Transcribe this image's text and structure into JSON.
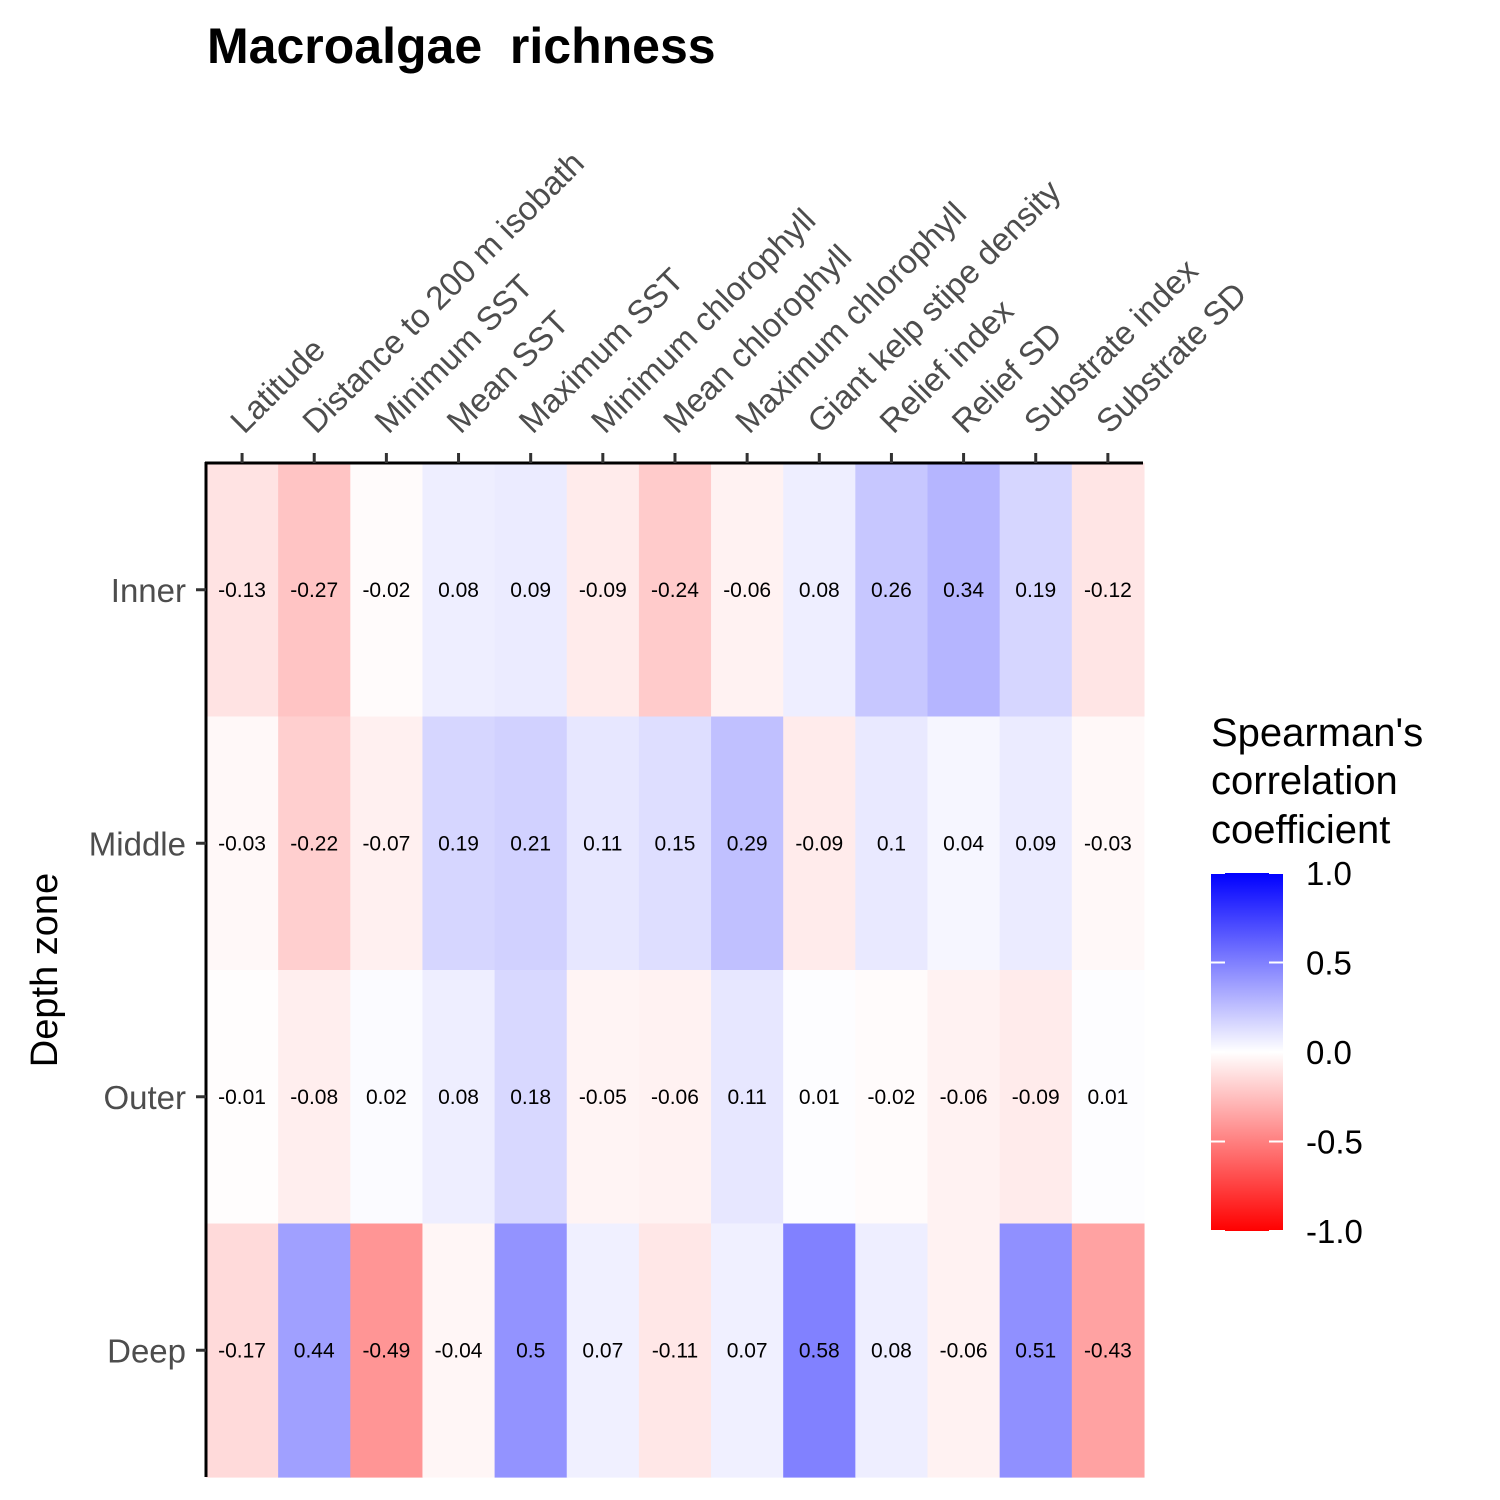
{
  "chart_data": {
    "type": "heatmap",
    "title": "Macroalgae  richness",
    "xlabel": "",
    "ylabel": "Depth zone",
    "x_categories": [
      "Latitude",
      "Distance to 200 m isobath",
      "Minimum SST",
      "Mean SST",
      "Maximum SST",
      "Minimum chlorophyll",
      "Mean chlorophyll",
      "Maximum chlorophyll",
      "Giant kelp stipe density",
      "Relief index",
      "Relief SD",
      "Substrate index",
      "Substrate SD"
    ],
    "y_categories": [
      "Inner",
      "Middle",
      "Outer",
      "Deep"
    ],
    "values": [
      [
        -0.13,
        -0.27,
        -0.02,
        0.08,
        0.09,
        -0.09,
        -0.24,
        -0.06,
        0.08,
        0.26,
        0.34,
        0.19,
        -0.12
      ],
      [
        -0.03,
        -0.22,
        -0.07,
        0.19,
        0.21,
        0.11,
        0.15,
        0.29,
        -0.09,
        0.1,
        0.04,
        0.09,
        -0.03
      ],
      [
        -0.01,
        -0.08,
        0.02,
        0.08,
        0.18,
        -0.05,
        -0.06,
        0.11,
        0.01,
        -0.02,
        -0.06,
        -0.09,
        0.01
      ],
      [
        -0.17,
        0.44,
        -0.49,
        -0.04,
        0.5,
        0.07,
        -0.11,
        0.07,
        0.58,
        0.08,
        -0.06,
        0.51,
        -0.43
      ]
    ],
    "cell_labels": [
      [
        "-0.13",
        "-0.27",
        "-0.02",
        "0.08",
        "0.09",
        "-0.09",
        "-0.24",
        "-0.06",
        "0.08",
        "0.26",
        "0.34",
        "0.19",
        "-0.12"
      ],
      [
        "-0.03",
        "-0.22",
        "-0.07",
        "0.19",
        "0.21",
        "0.11",
        "0.15",
        "0.29",
        "-0.09",
        "0.1",
        "0.04",
        "0.09",
        "-0.03"
      ],
      [
        "-0.01",
        "-0.08",
        "0.02",
        "0.08",
        "0.18",
        "-0.05",
        "-0.06",
        "0.11",
        "0.01",
        "-0.02",
        "-0.06",
        "-0.09",
        "0.01"
      ],
      [
        "-0.17",
        "0.44",
        "-0.49",
        "-0.04",
        "0.5",
        "0.07",
        "-0.11",
        "0.07",
        "0.58",
        "0.08",
        "-0.06",
        "0.51",
        "-0.43"
      ]
    ],
    "x_axis_position": "top",
    "grid": false,
    "legend": {
      "title_lines": [
        "Spearman's",
        "correlation",
        "coefficient"
      ],
      "ticks": [
        1.0,
        0.5,
        0.0,
        -0.5,
        -1.0
      ],
      "tick_labels": [
        "1.0",
        "0.5",
        "0.0",
        "-0.5",
        "-1.0"
      ],
      "placement": "right",
      "range": [
        -1,
        1
      ]
    },
    "colors": {
      "low": "#ff0000",
      "mid": "#ffffff",
      "high": "#0000ff"
    }
  }
}
